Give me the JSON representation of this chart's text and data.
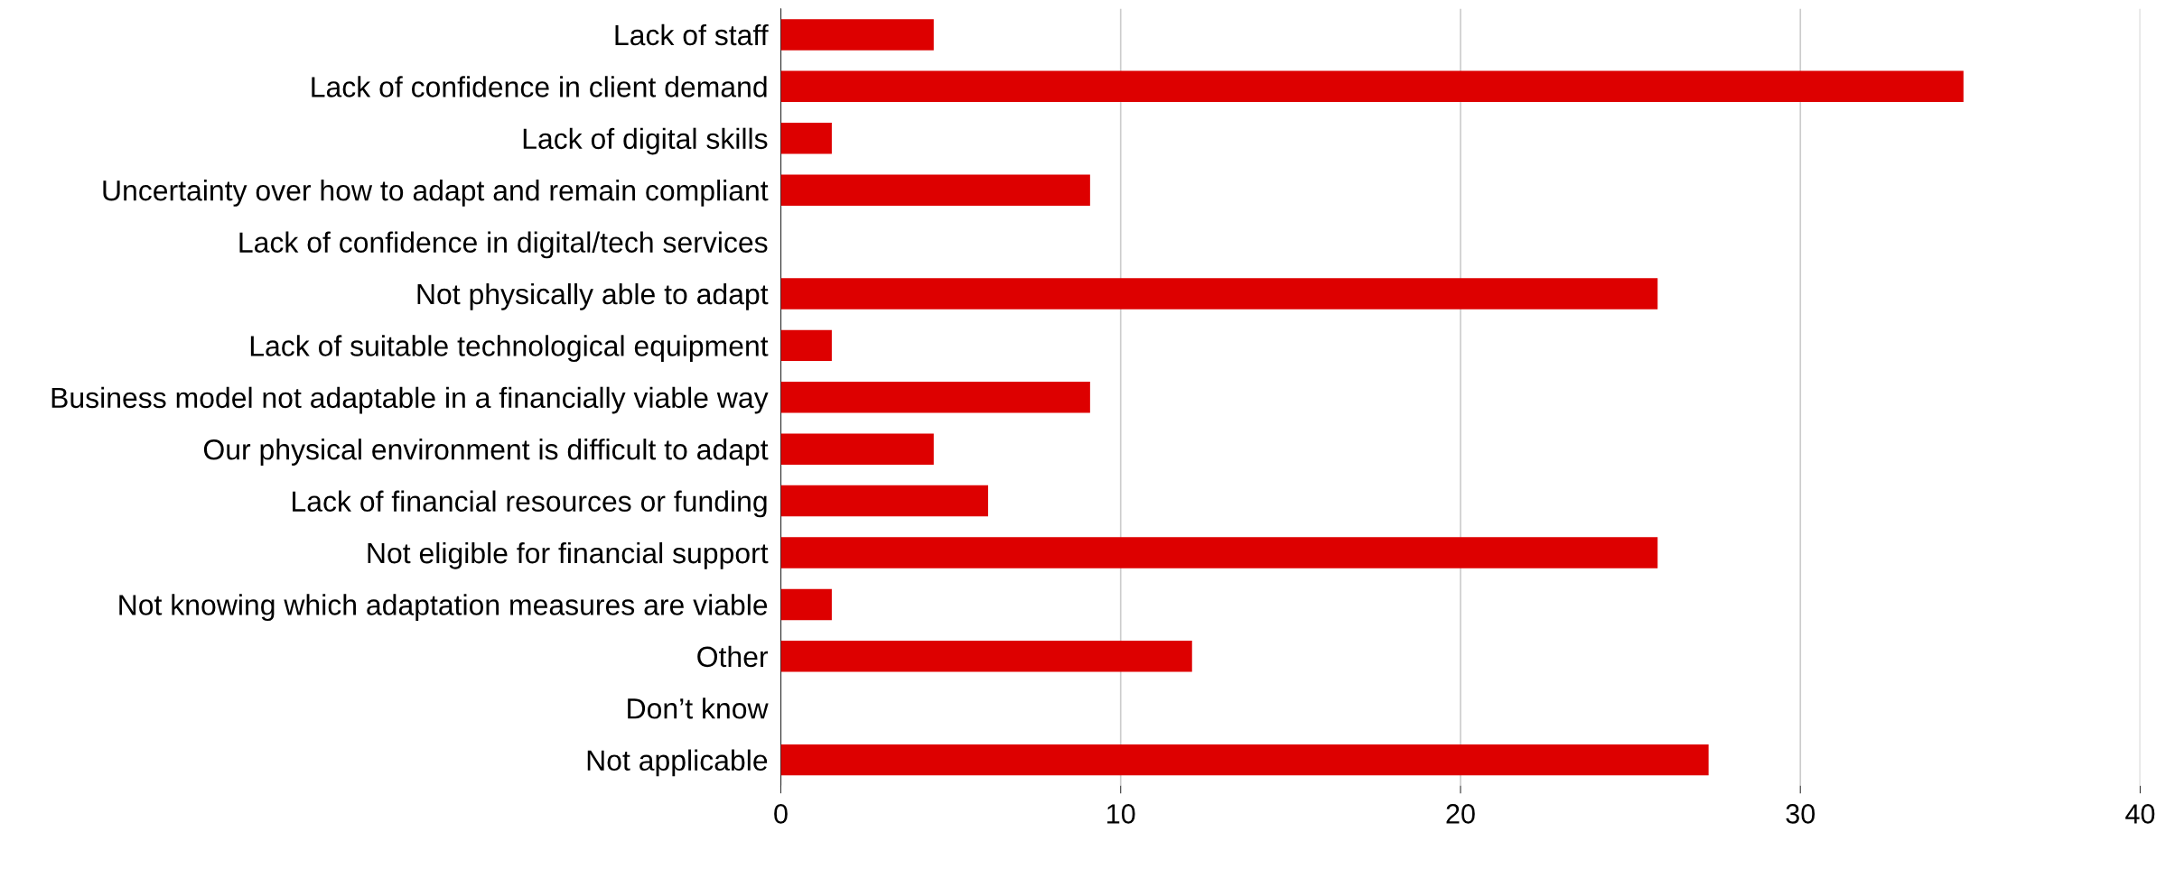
{
  "chart_data": {
    "type": "bar",
    "orientation": "horizontal",
    "categories": [
      "Lack of staff",
      "Lack of confidence in client demand",
      "Lack of digital skills",
      "Uncertainty over how to adapt and remain compliant",
      "Lack of confidence in digital/tech services",
      "Not physically able to adapt",
      "Lack of suitable technological equipment",
      "Business model not adaptable in a financially viable way",
      "Our physical environment is difficult to adapt",
      "Lack of financial resources or funding",
      "Not eligible for financial support",
      "Not knowing which adaptation measures are viable",
      "Other",
      "Don’t know",
      "Not applicable"
    ],
    "values": [
      4.5,
      34.8,
      1.5,
      9.1,
      0,
      25.8,
      1.5,
      9.1,
      4.5,
      6.1,
      25.8,
      1.5,
      12.1,
      0,
      27.3
    ],
    "color": "#dd0000",
    "xlim": [
      0,
      40
    ],
    "xticks": [
      0,
      10,
      20,
      30,
      40
    ],
    "grid": "x"
  }
}
